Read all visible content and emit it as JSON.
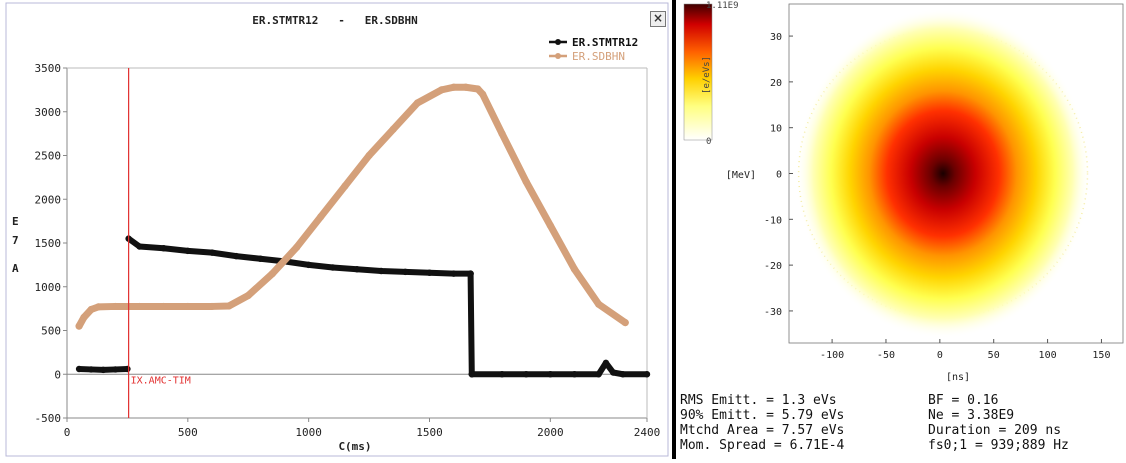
{
  "window": {
    "title": "ER.STMTR12   -   ER.SDBHN",
    "close_label": "×"
  },
  "chart_data": [
    {
      "type": "line",
      "title": "ER.STMTR12   -   ER.SDBHN",
      "xlabel": "C(ms)",
      "ylabel_lines": [
        "E",
        "7",
        "A"
      ],
      "xlim": [
        0,
        2400
      ],
      "ylim": [
        -500,
        3500
      ],
      "xticks": [
        0,
        500,
        1000,
        1500,
        2000,
        2400
      ],
      "yticks": [
        -500,
        0,
        500,
        1000,
        1500,
        2000,
        2500,
        3000,
        3500
      ],
      "grid": false,
      "legend_position": "top-right",
      "marker": {
        "x": 255,
        "label": "IX.AMC-TIM",
        "color": "#e23030"
      },
      "series": [
        {
          "name": "ER.STMTR12",
          "color": "#111111",
          "segments": [
            {
              "x": [
                50,
                100,
                150,
                200,
                250
              ],
              "y": [
                60,
                55,
                50,
                55,
                60
              ]
            },
            {
              "x": [
                255,
                300,
                400,
                500,
                600,
                700,
                800,
                900,
                1000,
                1100,
                1200,
                1300,
                1400,
                1500,
                1600,
                1670
              ],
              "y": [
                1550,
                1460,
                1440,
                1410,
                1390,
                1350,
                1320,
                1290,
                1250,
                1220,
                1200,
                1180,
                1170,
                1160,
                1150,
                1150
              ]
            },
            {
              "x": [
                1670,
                1675
              ],
              "y": [
                1150,
                0
              ]
            },
            {
              "x": [
                1675,
                1800,
                1900,
                2000,
                2100,
                2200,
                2230,
                2260,
                2300,
                2400
              ],
              "y": [
                0,
                0,
                0,
                0,
                0,
                0,
                130,
                20,
                0,
                0
              ]
            }
          ]
        },
        {
          "name": "ER.SDBHN",
          "color": "#d4a07a",
          "segments": [
            {
              "x": [
                50,
                70,
                100,
                130,
                200,
                300,
                400,
                500,
                600,
                670,
                750,
                850,
                950,
                1050,
                1150,
                1250,
                1350,
                1450,
                1550,
                1600,
                1650,
                1700,
                1720,
                1800,
                1900,
                2000,
                2100,
                2200,
                2310
              ],
              "y": [
                550,
                650,
                740,
                770,
                775,
                775,
                775,
                775,
                775,
                780,
                900,
                1150,
                1450,
                1800,
                2150,
                2500,
                2800,
                3100,
                3250,
                3280,
                3280,
                3260,
                3200,
                2750,
                2200,
                1700,
                1200,
                800,
                590
              ]
            }
          ]
        }
      ]
    },
    {
      "type": "heatmap",
      "xlabel": "[ns]",
      "ylabel": "[MeV]",
      "xlim": [
        -140,
        170
      ],
      "ylim": [
        -37,
        37
      ],
      "xticks": [
        -100,
        -50,
        0,
        50,
        100,
        150
      ],
      "yticks": [
        30,
        20,
        10,
        0,
        -10,
        -20,
        -30
      ],
      "colorbar": {
        "label": "[e/eVs]",
        "max_label": "1.11E9",
        "min_label": "0"
      },
      "peak": {
        "x": 3,
        "y": 0
      },
      "sigma_ns": 38,
      "sigma_mev": 10
    }
  ],
  "stats": [
    {
      "left": "RMS Emitt. = 1.3 eVs",
      "right": "BF = 0.16"
    },
    {
      "left": "90% Emitt. = 5.79 eVs",
      "right": "Ne = 3.38E9"
    },
    {
      "left": "Mtchd Area = 7.57 eVs",
      "right": "Duration = 209 ns"
    },
    {
      "left": "Mom. Spread = 6.71E-4",
      "right": "fs0;1 = 939;889 Hz"
    }
  ]
}
